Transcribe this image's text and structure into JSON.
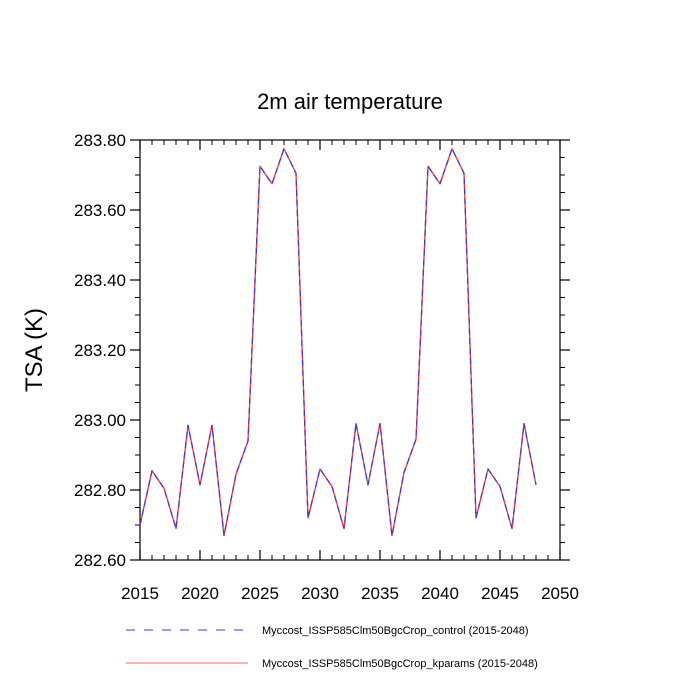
{
  "chart_data": {
    "type": "line",
    "title": "2m air temperature",
    "xlabel": "",
    "ylabel": "TSA  (K)",
    "xlim": [
      2015,
      2050
    ],
    "ylim": [
      282.6,
      283.8
    ],
    "x_ticks": [
      2015,
      2020,
      2025,
      2030,
      2035,
      2040,
      2045,
      2050
    ],
    "x_tick_labels": [
      "2015",
      "2020",
      "2025",
      "2030",
      "2035",
      "2040",
      "2045",
      "2050"
    ],
    "y_ticks": [
      282.6,
      282.8,
      283.0,
      283.2,
      283.4,
      283.6,
      283.8
    ],
    "y_tick_labels": [
      "282.60",
      "282.80",
      "283.00",
      "283.20",
      "283.40",
      "283.60",
      "283.80"
    ],
    "x": [
      2015,
      2016,
      2017,
      2018,
      2019,
      2020,
      2021,
      2022,
      2023,
      2024,
      2025,
      2026,
      2027,
      2028,
      2029,
      2030,
      2031,
      2032,
      2033,
      2034,
      2035,
      2036,
      2037,
      2038,
      2039,
      2040,
      2041,
      2042,
      2043,
      2044,
      2045,
      2046,
      2047,
      2048
    ],
    "series": [
      {
        "name": "Myccost_ISSP585Clm50BgcCrop_control (2015-2048)",
        "color": "#3b3bd8",
        "style": "dashed",
        "values": [
          282.7,
          282.855,
          282.805,
          282.69,
          282.985,
          282.815,
          282.985,
          282.67,
          282.845,
          282.94,
          283.725,
          283.675,
          283.775,
          283.705,
          282.72,
          282.86,
          282.81,
          282.69,
          282.99,
          282.815,
          282.99,
          282.67,
          282.85,
          282.945,
          283.725,
          283.675,
          283.775,
          283.705,
          282.72,
          282.86,
          282.81,
          282.69,
          282.99,
          282.815
        ]
      },
      {
        "name": "Myccost_ISSP585Clm50BgcCrop_kparams (2015-2048)",
        "color": "#ff3030",
        "style": "solid",
        "values": [
          282.7,
          282.855,
          282.805,
          282.69,
          282.985,
          282.815,
          282.985,
          282.67,
          282.845,
          282.94,
          283.725,
          283.675,
          283.775,
          283.705,
          282.72,
          282.86,
          282.81,
          282.69,
          282.99,
          282.815,
          282.99,
          282.67,
          282.85,
          282.945,
          283.725,
          283.675,
          283.775,
          283.705,
          282.72,
          282.86,
          282.81,
          282.69,
          282.99,
          282.815
        ]
      }
    ]
  }
}
